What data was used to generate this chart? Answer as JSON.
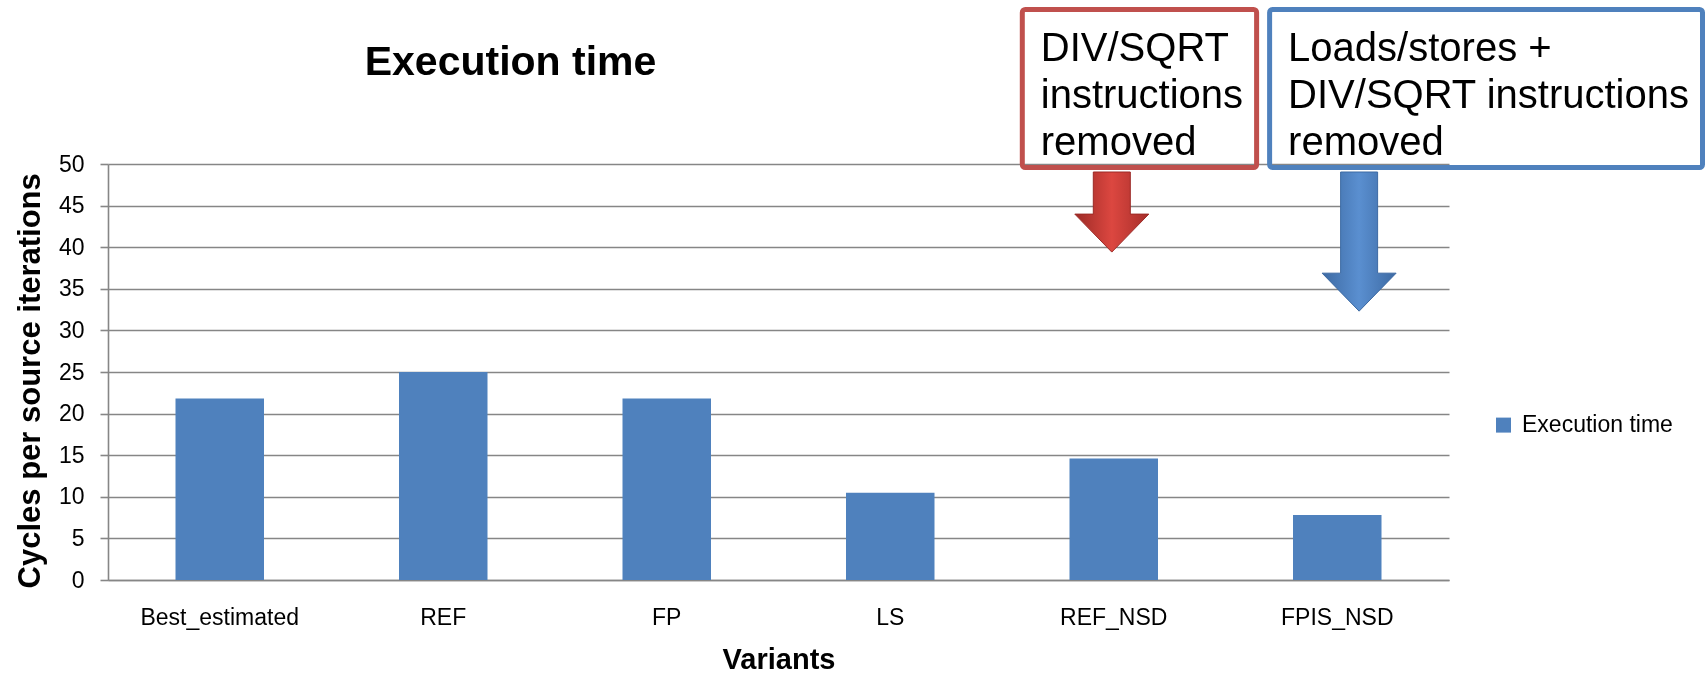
{
  "chart_data": {
    "type": "bar",
    "title": "Execution time",
    "xlabel": "Variants",
    "ylabel": "Cycles per source iterations",
    "categories": [
      "Best_estimated",
      "REF",
      "FP",
      "LS",
      "REF_NSD",
      "FPIS_NSD"
    ],
    "series": [
      {
        "name": "Execution time",
        "color": "#4f81bd",
        "values": [
          21.8,
          25,
          21.8,
          10.5,
          14.6,
          7.8
        ]
      }
    ],
    "ylim": [
      0,
      50
    ],
    "yticks": [
      0,
      5,
      10,
      15,
      20,
      25,
      30,
      35,
      40,
      45,
      50
    ],
    "grid": "y",
    "legend": "right",
    "annotations": [
      "DIV/SQRT\ninstructions\nremoved",
      "Loads/stores +\nDIV/SQRT instructions\nremoved"
    ]
  }
}
